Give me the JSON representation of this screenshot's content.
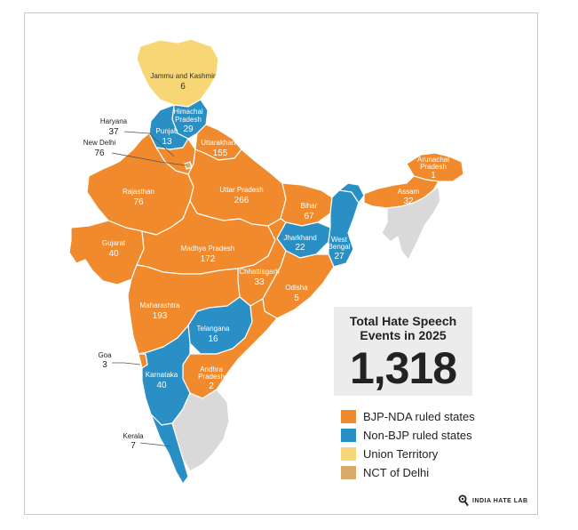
{
  "colors": {
    "bjp_nda": "#F08a2c",
    "non_bjp": "#2a8fc4",
    "union_territory": "#f7d675",
    "nct_delhi": "#d9a96a",
    "no_data": "#d9d9d9"
  },
  "summary": {
    "title": "Total Hate Speech Events in 2025",
    "total": "1,318"
  },
  "legend": [
    {
      "label": "BJP-NDA ruled states",
      "color": "#F08a2c"
    },
    {
      "label": "Non-BJP ruled states",
      "color": "#2a8fc4"
    },
    {
      "label": "Union Territory",
      "color": "#f7d675"
    },
    {
      "label": "NCT of Delhi",
      "color": "#d9a96a"
    }
  ],
  "regions": {
    "jammu_kashmir": {
      "name": "Jammu and Kashmir",
      "value": "6"
    },
    "himachal": {
      "name": "Himachal Pradesh",
      "value": "29"
    },
    "punjab": {
      "name": "Punjab",
      "value": "13"
    },
    "haryana": {
      "name": "Haryana",
      "value": "37"
    },
    "delhi": {
      "name": "New Delhi",
      "value": "76"
    },
    "uttarakhand": {
      "name": "Uttarakhand",
      "value": "155"
    },
    "rajasthan": {
      "name": "Rajasthan",
      "value": "76"
    },
    "uttar_pradesh": {
      "name": "Uttar Pradesh",
      "value": "266"
    },
    "bihar": {
      "name": "Bihar",
      "value": "67"
    },
    "arunachal": {
      "name": "Arunachal Pradesh",
      "value": "1"
    },
    "assam": {
      "name": "Assam",
      "value": "32"
    },
    "gujarat": {
      "name": "Gujarat",
      "value": "40"
    },
    "madhya_pradesh": {
      "name": "Madhya Pradesh",
      "value": "172"
    },
    "jharkhand": {
      "name": "Jharkhand",
      "value": "22"
    },
    "west_bengal": {
      "name": "West Bengal",
      "value": "27"
    },
    "chhattisgarh": {
      "name": "Chhattisgarh",
      "value": "33"
    },
    "odisha": {
      "name": "Odisha",
      "value": "5"
    },
    "maharashtra": {
      "name": "Maharashtra",
      "value": "193"
    },
    "telangana": {
      "name": "Telangana",
      "value": "16"
    },
    "goa": {
      "name": "Goa",
      "value": "3"
    },
    "karnataka": {
      "name": "Karnataka",
      "value": "40"
    },
    "andhra_pradesh": {
      "name": "Andhra Pradesh",
      "value": "2"
    },
    "kerala": {
      "name": "Kerala",
      "value": "7"
    }
  },
  "brand": {
    "name": "INDIA HATE LAB",
    "icon": "magnifier-logo-icon"
  }
}
